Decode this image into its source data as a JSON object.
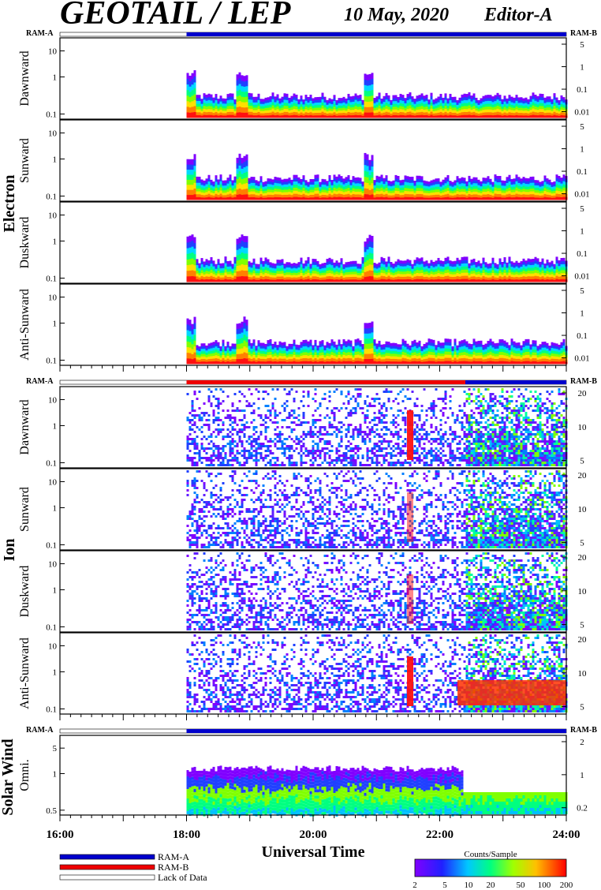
{
  "header": {
    "title": "GEOTAIL / LEP",
    "date": "10 May, 2020",
    "editor": "Editor-A"
  },
  "ram_labels": {
    "left": "RAM-A",
    "right": "RAM-B"
  },
  "groups": {
    "electron": "Electron",
    "ion": "Ion",
    "solar_wind": "Solar Wind"
  },
  "x_axis": {
    "label": "Universal Time",
    "ticks": [
      "16:00",
      "18:00",
      "20:00",
      "22:00",
      "24:00"
    ]
  },
  "legend": {
    "ram_a": "RAM-A",
    "ram_b": "RAM-B",
    "lack": "Lack of Data",
    "ram_a_color": "#0000cc",
    "ram_b_color": "#ee0000"
  },
  "colorbar": {
    "title": "Counts/Sample",
    "ticks": [
      "2",
      "5",
      "10",
      "20",
      "50",
      "100",
      "200"
    ]
  },
  "chart_data": {
    "type": "heatmap",
    "time_range_hours": [
      16,
      24
    ],
    "data_start_hour": 18,
    "panels": [
      {
        "group": "Electron",
        "name": "Dawnward",
        "left_ticks": [
          "10",
          "1",
          "0.1"
        ],
        "right_ticks": [
          "5",
          "1",
          "0.1",
          "0.01"
        ]
      },
      {
        "group": "Electron",
        "name": "Sunward",
        "left_ticks": [
          "10",
          "1",
          "0.1"
        ],
        "right_ticks": [
          "5",
          "1",
          "0.1",
          "0.01"
        ]
      },
      {
        "group": "Electron",
        "name": "Duskward",
        "left_ticks": [
          "10",
          "1",
          "0.1"
        ],
        "right_ticks": [
          "5",
          "1",
          "0.1",
          "0.01"
        ]
      },
      {
        "group": "Electron",
        "name": "Anti-Sunward",
        "left_ticks": [
          "10",
          "1",
          "0.1"
        ],
        "right_ticks": [
          "5",
          "1",
          "0.1",
          "0.01"
        ]
      },
      {
        "group": "Ion",
        "name": "Dawnward",
        "left_ticks": [
          "10",
          "1",
          "0.1"
        ],
        "right_ticks": [
          "20",
          "10",
          "5"
        ]
      },
      {
        "group": "Ion",
        "name": "Sunward",
        "left_ticks": [
          "10",
          "1",
          "0.1"
        ],
        "right_ticks": [
          "20",
          "10",
          "5"
        ]
      },
      {
        "group": "Ion",
        "name": "Duskward",
        "left_ticks": [
          "10",
          "1",
          "0.1"
        ],
        "right_ticks": [
          "20",
          "10",
          "5"
        ]
      },
      {
        "group": "Ion",
        "name": "Anti-Sunward",
        "left_ticks": [
          "10",
          "1",
          "0.1"
        ],
        "right_ticks": [
          "20",
          "10",
          "5"
        ]
      },
      {
        "group": "Solar Wind",
        "name": "Omni.",
        "left_ticks": [
          "5",
          "1",
          "0.5"
        ],
        "right_ticks": [
          "2",
          "1",
          "0.2"
        ]
      }
    ]
  }
}
